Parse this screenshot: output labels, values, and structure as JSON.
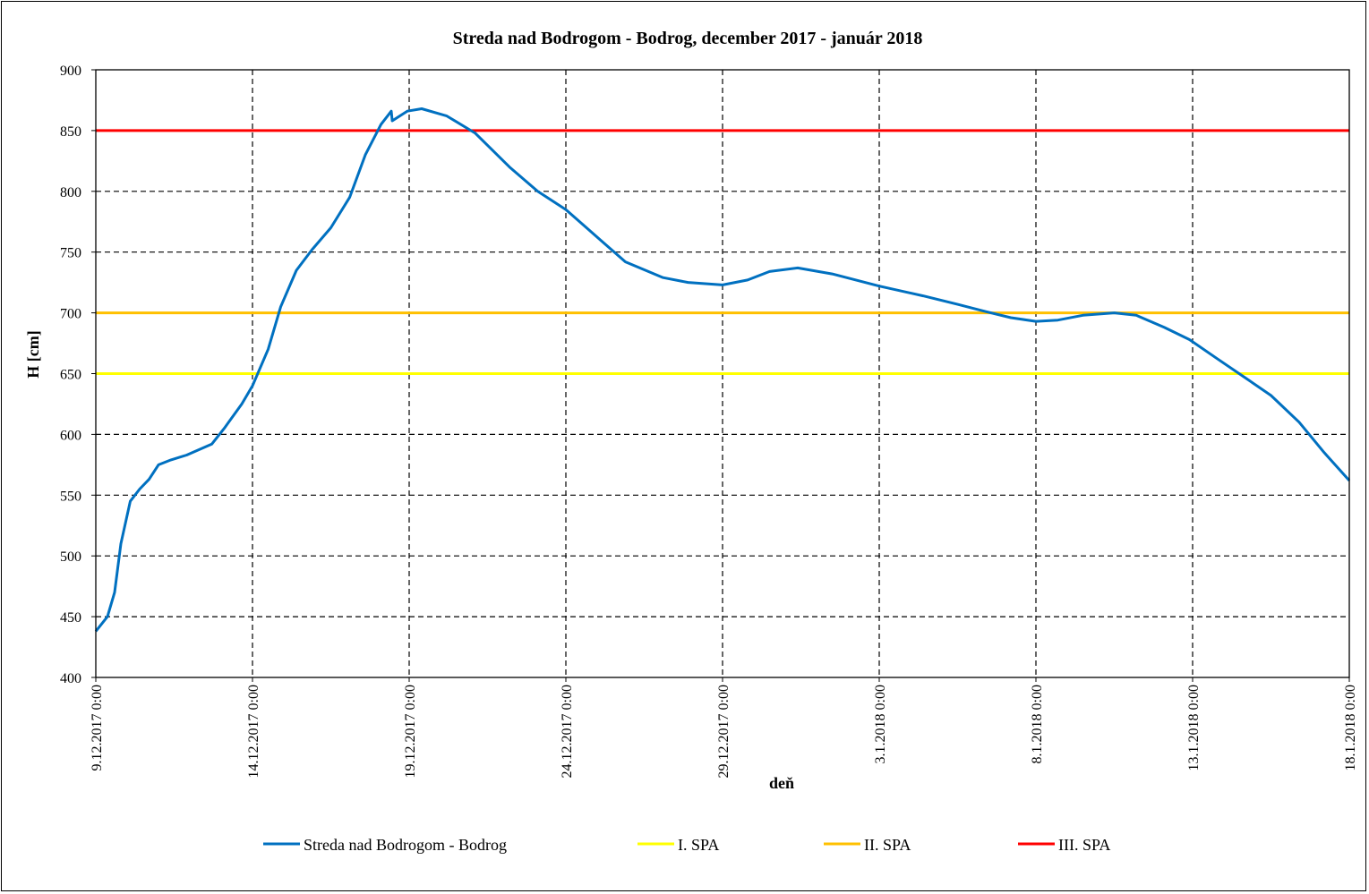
{
  "chart_data": {
    "type": "line",
    "title": "Streda nad Bodrogom - Bodrog, december 2017 - január 2018",
    "xlabel": "deň",
    "ylabel": "H [cm]",
    "ylim": [
      400,
      900
    ],
    "yticks": [
      400,
      450,
      500,
      550,
      600,
      650,
      700,
      750,
      800,
      850,
      900
    ],
    "x_unit": "days since 9.12.2017 0:00",
    "xlim": [
      0,
      40
    ],
    "xticks": [
      {
        "value": 0,
        "label": "9.12.2017 0:00"
      },
      {
        "value": 5,
        "label": "14.12.2017 0:00"
      },
      {
        "value": 10,
        "label": "19.12.2017 0:00"
      },
      {
        "value": 15,
        "label": "24.12.2017 0:00"
      },
      {
        "value": 20,
        "label": "29.12.2017 0:00"
      },
      {
        "value": 25,
        "label": "3.1.2018 0:00"
      },
      {
        "value": 30,
        "label": "8.1.2018 0:00"
      },
      {
        "value": 35,
        "label": "13.1.2018 0:00"
      },
      {
        "value": 40,
        "label": "18.1.2018 0:00"
      }
    ],
    "grid": true,
    "legend_position": "bottom",
    "series": [
      {
        "name": "Streda nad Bodrogom - Bodrog",
        "color": "#0070C0",
        "points": [
          [
            0,
            438
          ],
          [
            0.37,
            450
          ],
          [
            0.6,
            470
          ],
          [
            0.8,
            510
          ],
          [
            1.1,
            545
          ],
          [
            1.4,
            555
          ],
          [
            1.7,
            563
          ],
          [
            2.0,
            575
          ],
          [
            2.4,
            579
          ],
          [
            2.9,
            583
          ],
          [
            3.7,
            592
          ],
          [
            4.1,
            605
          ],
          [
            4.66,
            625
          ],
          [
            5.0,
            640
          ],
          [
            5.5,
            670
          ],
          [
            5.9,
            705
          ],
          [
            6.4,
            735
          ],
          [
            6.9,
            752
          ],
          [
            7.5,
            770
          ],
          [
            8.1,
            795
          ],
          [
            8.6,
            830
          ],
          [
            9.1,
            855
          ],
          [
            9.43,
            866
          ],
          [
            9.46,
            858
          ],
          [
            9.94,
            866
          ],
          [
            10.4,
            868
          ],
          [
            11.2,
            862
          ],
          [
            12.1,
            848
          ],
          [
            13.2,
            820
          ],
          [
            14.1,
            800
          ],
          [
            15.0,
            785
          ],
          [
            16.1,
            760
          ],
          [
            16.9,
            742
          ],
          [
            18.1,
            729
          ],
          [
            18.9,
            725
          ],
          [
            20.0,
            723
          ],
          [
            20.8,
            727
          ],
          [
            21.5,
            734
          ],
          [
            22.4,
            737
          ],
          [
            23.5,
            732
          ],
          [
            25.0,
            722
          ],
          [
            26.4,
            714
          ],
          [
            27.5,
            707
          ],
          [
            28.4,
            701
          ],
          [
            29.2,
            696
          ],
          [
            30.0,
            693
          ],
          [
            30.7,
            694
          ],
          [
            31.5,
            698
          ],
          [
            32.5,
            700
          ],
          [
            33.2,
            698
          ],
          [
            34.1,
            688
          ],
          [
            34.9,
            678
          ],
          [
            35.8,
            662
          ],
          [
            36.6,
            648
          ],
          [
            37.5,
            632
          ],
          [
            38.4,
            610
          ],
          [
            39.2,
            585
          ],
          [
            40.0,
            562
          ]
        ]
      },
      {
        "name": "I. SPA",
        "color": "#FFFF00",
        "constant": 650
      },
      {
        "name": "II. SPA",
        "color": "#FFC000",
        "constant": 700
      },
      {
        "name": "III. SPA",
        "color": "#FF0000",
        "constant": 850
      }
    ]
  }
}
